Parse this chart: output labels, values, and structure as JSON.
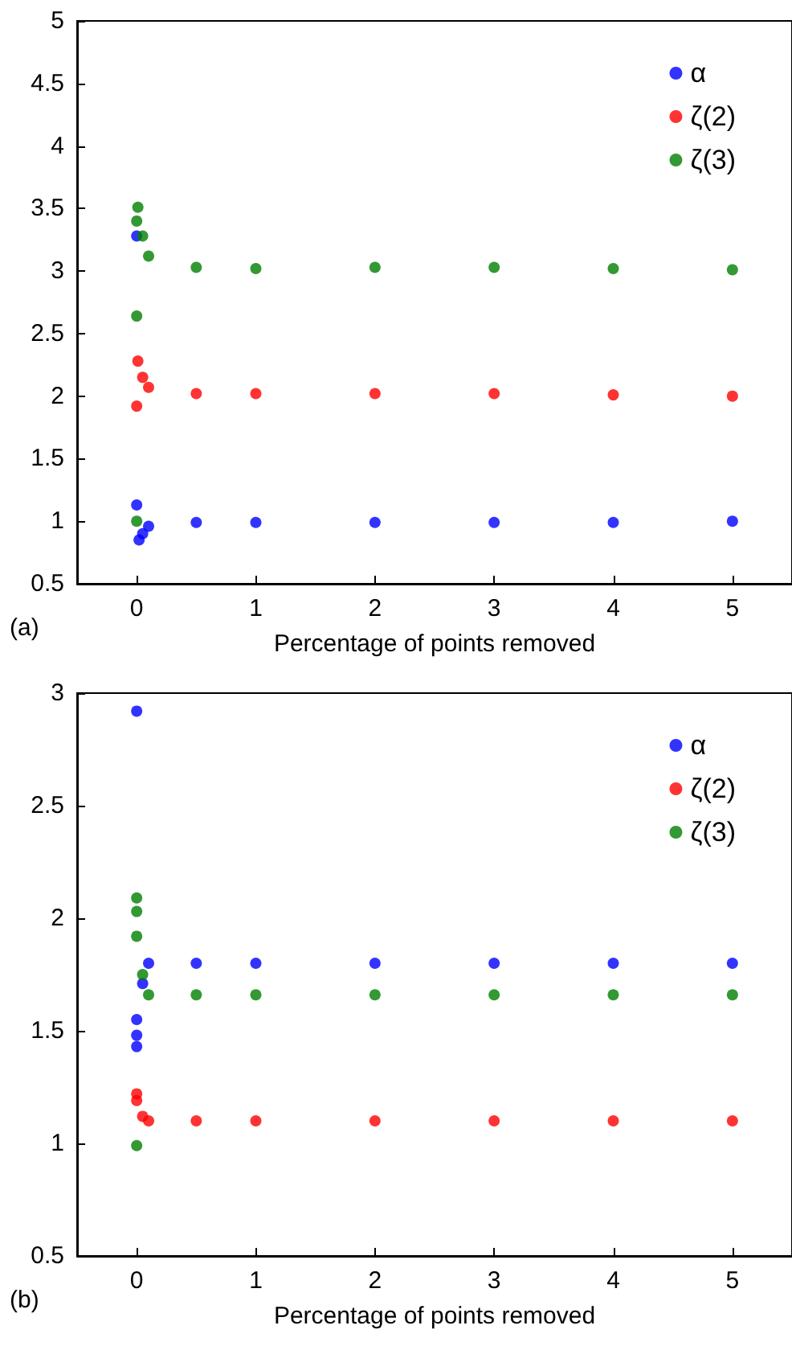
{
  "chart_data": [
    {
      "type": "scatter",
      "xlabel": "Percentage of points removed",
      "annotations": [
        "(a)"
      ],
      "xlim": [
        -0.5,
        5.5
      ],
      "xticks": [
        0,
        1,
        2,
        3,
        4,
        5
      ],
      "ylim": [
        0.5,
        5
      ],
      "yticks": [
        0.5,
        1,
        1.5,
        2,
        2.5,
        3,
        3.5,
        4,
        4.5,
        5
      ],
      "grid": false,
      "legend": "top right",
      "marker": "circle",
      "series": [
        {
          "name": "α",
          "color": "#0000ff",
          "x": [
            0,
            0,
            0.02,
            0.05,
            0.1,
            0.5,
            1,
            2,
            3,
            4,
            5
          ],
          "values": [
            3.28,
            1.13,
            0.85,
            0.9,
            0.96,
            0.99,
            0.99,
            0.99,
            0.99,
            0.99,
            1.0
          ]
        },
        {
          "name": "ζ(2)",
          "color": "#ff0000",
          "x": [
            0,
            0.01,
            0.05,
            0.1,
            0.5,
            1,
            2,
            3,
            4,
            5
          ],
          "values": [
            1.92,
            2.28,
            2.15,
            2.07,
            2.02,
            2.02,
            2.02,
            2.02,
            2.01,
            2.0
          ]
        },
        {
          "name": "ζ(3)",
          "color": "#008000",
          "x": [
            0,
            0,
            0,
            0.01,
            0.05,
            0.1,
            0.5,
            1,
            2,
            3,
            4,
            5
          ],
          "values": [
            1.0,
            2.64,
            3.4,
            3.51,
            3.28,
            3.12,
            3.03,
            3.02,
            3.03,
            3.03,
            3.02,
            3.01
          ]
        }
      ]
    },
    {
      "type": "scatter",
      "xlabel": "Percentage of points removed",
      "annotations": [
        "(b)"
      ],
      "xlim": [
        -0.5,
        5.5
      ],
      "xticks": [
        0,
        1,
        2,
        3,
        4,
        5
      ],
      "ylim": [
        0.5,
        3
      ],
      "yticks": [
        0.5,
        1,
        1.5,
        2,
        2.5,
        3
      ],
      "grid": false,
      "legend": "top right",
      "marker": "circle",
      "series": [
        {
          "name": "α",
          "color": "#0000ff",
          "x": [
            0,
            0,
            0,
            0,
            0.05,
            0.1,
            0.5,
            1,
            2,
            3,
            4,
            5
          ],
          "values": [
            2.92,
            1.55,
            1.48,
            1.43,
            1.71,
            1.8,
            1.8,
            1.8,
            1.8,
            1.8,
            1.8,
            1.8
          ]
        },
        {
          "name": "ζ(2)",
          "color": "#ff0000",
          "x": [
            0,
            0,
            0.05,
            0.1,
            0.5,
            1,
            2,
            3,
            4,
            5
          ],
          "values": [
            1.22,
            1.19,
            1.12,
            1.1,
            1.1,
            1.1,
            1.1,
            1.1,
            1.1,
            1.1
          ]
        },
        {
          "name": "ζ(3)",
          "color": "#008000",
          "x": [
            0,
            0,
            0,
            0,
            0.05,
            0.1,
            0.5,
            1,
            2,
            3,
            4,
            5
          ],
          "values": [
            2.09,
            2.03,
            1.92,
            0.99,
            1.75,
            1.66,
            1.66,
            1.66,
            1.66,
            1.66,
            1.66,
            1.66
          ]
        }
      ]
    }
  ]
}
